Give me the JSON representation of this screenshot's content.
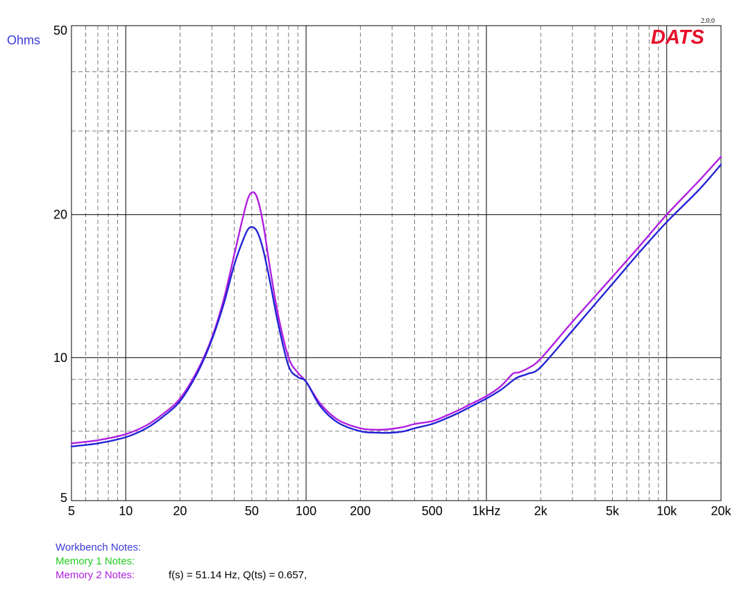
{
  "header": {
    "version": "2.0.0",
    "brand": "DATS",
    "y_unit_label": "Ohms"
  },
  "colors": {
    "workbench": "#2323d6",
    "memory1": "#22cc22",
    "memory2": "#b01ee0",
    "y_label": "#3a3ad6",
    "brand": "#e8102a"
  },
  "notes": {
    "workbench_label": "Workbench Notes:",
    "workbench_text": "",
    "memory1_label": "Memory 1 Notes:",
    "memory1_text": "",
    "memory2_label": "Memory 2 Notes:",
    "memory2_text": "f(s) = 51.14 Hz, Q(ts) = 0.657,"
  },
  "chart_data": {
    "type": "line",
    "xscale": "log",
    "yscale": "log",
    "xlim": [
      5,
      20000
    ],
    "ylim": [
      5,
      50
    ],
    "x_tick_labels": [
      {
        "value": 5,
        "label": "5"
      },
      {
        "value": 10,
        "label": "10"
      },
      {
        "value": 20,
        "label": "20"
      },
      {
        "value": 50,
        "label": "50"
      },
      {
        "value": 100,
        "label": "100"
      },
      {
        "value": 200,
        "label": "200"
      },
      {
        "value": 500,
        "label": "500"
      },
      {
        "value": 1000,
        "label": "1kHz"
      },
      {
        "value": 2000,
        "label": "2k"
      },
      {
        "value": 5000,
        "label": "5k"
      },
      {
        "value": 10000,
        "label": "10k"
      },
      {
        "value": 20000,
        "label": "20k"
      }
    ],
    "y_tick_labels": [
      {
        "value": 5,
        "label": "5"
      },
      {
        "value": 10,
        "label": "10"
      },
      {
        "value": 20,
        "label": "20"
      },
      {
        "value": 50,
        "label": "50"
      }
    ],
    "grid": true,
    "series": [
      {
        "color": "#b01ee0",
        "x": [
          5,
          7,
          10,
          13,
          16,
          20,
          25,
          30,
          35,
          40,
          45,
          48,
          51,
          54,
          58,
          63,
          70,
          80,
          90,
          100,
          120,
          150,
          200,
          250,
          300,
          350,
          400,
          500,
          600,
          700,
          800,
          1000,
          1200,
          1400,
          1500,
          1700,
          2000,
          3000,
          5000,
          7000,
          10000,
          15000,
          20000
        ],
        "values": [
          6.6,
          6.7,
          6.9,
          7.2,
          7.6,
          8.2,
          9.4,
          11.0,
          13.3,
          16.5,
          20.0,
          21.8,
          22.3,
          21.5,
          19.0,
          15.5,
          12.3,
          10.0,
          9.3,
          8.9,
          8.0,
          7.4,
          7.1,
          7.05,
          7.08,
          7.15,
          7.25,
          7.35,
          7.55,
          7.75,
          7.95,
          8.3,
          8.7,
          9.25,
          9.3,
          9.5,
          9.95,
          11.9,
          14.8,
          17.1,
          20.0,
          23.5,
          26.5
        ]
      },
      {
        "color": "#2323d6",
        "x": [
          5,
          7,
          10,
          13,
          16,
          20,
          25,
          30,
          35,
          40,
          45,
          48,
          51,
          54,
          58,
          63,
          70,
          80,
          90,
          100,
          120,
          150,
          200,
          250,
          300,
          350,
          400,
          500,
          600,
          700,
          800,
          1000,
          1200,
          1400,
          1500,
          1700,
          2000,
          3000,
          5000,
          7000,
          10000,
          15000,
          20000
        ],
        "values": [
          6.5,
          6.6,
          6.8,
          7.1,
          7.5,
          8.1,
          9.3,
          10.9,
          13.0,
          15.7,
          17.8,
          18.7,
          18.8,
          18.3,
          16.8,
          14.5,
          11.8,
          9.6,
          9.1,
          8.9,
          7.9,
          7.3,
          7.0,
          6.95,
          6.95,
          7.0,
          7.1,
          7.25,
          7.45,
          7.65,
          7.85,
          8.2,
          8.55,
          8.95,
          9.1,
          9.25,
          9.55,
          11.4,
          14.3,
          16.6,
          19.3,
          22.5,
          25.5
        ]
      }
    ]
  }
}
